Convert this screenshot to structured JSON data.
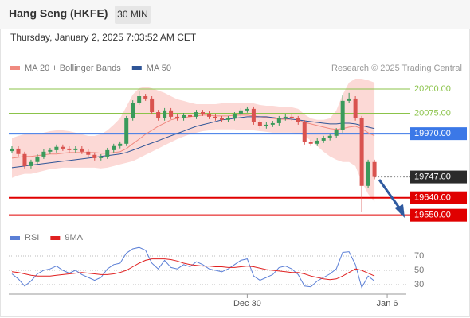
{
  "header": {
    "title": "Hang Seng (HKFE)",
    "interval": "30 MIN",
    "timestamp": "Thursday, January 2, 2025 7:03:52 AM CET"
  },
  "chart_data": [
    {
      "type": "candlestick",
      "source": "Research © 2025 Trading Central",
      "up_color": "#3a9a5b",
      "down_color": "#d9534f",
      "open": [
        19880,
        19893,
        19865,
        19803,
        19824,
        19852,
        19877,
        19885,
        19902,
        19893,
        19885,
        19893,
        19877,
        19861,
        19844,
        19852,
        19885,
        19906,
        19918,
        20049,
        20130,
        20163,
        20151,
        20081,
        20049,
        20090,
        20057,
        20049,
        20065,
        20057,
        20081,
        20073,
        20057,
        20049,
        20041,
        20049,
        20069,
        20090,
        20098,
        20028,
        20008,
        20016,
        20024,
        20049,
        20057,
        20049,
        20028,
        19926,
        19918,
        19934,
        19947,
        19959,
        19987,
        20139,
        20151,
        20049,
        19701,
        19824
      ],
      "high": [
        19905,
        19905,
        19877,
        19836,
        19864,
        19889,
        19897,
        19914,
        19914,
        19905,
        19905,
        19905,
        19889,
        19873,
        19864,
        19897,
        19918,
        19930,
        20061,
        20142,
        20190,
        20175,
        20163,
        20093,
        20102,
        20102,
        20069,
        20077,
        20077,
        20093,
        20093,
        20085,
        20069,
        20061,
        20061,
        20081,
        20102,
        20110,
        20110,
        20040,
        20028,
        20036,
        20061,
        20069,
        20069,
        20061,
        20040,
        19938,
        19946,
        19959,
        19971,
        19999,
        20170,
        20180,
        20163,
        20061,
        19836,
        19836
      ],
      "low": [
        19868,
        19853,
        19791,
        19791,
        19812,
        19840,
        19865,
        19873,
        19881,
        19873,
        19873,
        19865,
        19849,
        19832,
        19832,
        19840,
        19873,
        19894,
        19906,
        20037,
        20118,
        20139,
        20069,
        20037,
        20037,
        20045,
        20037,
        20037,
        20045,
        20045,
        20061,
        20045,
        20037,
        20029,
        20029,
        20037,
        20057,
        20078,
        20016,
        19996,
        19996,
        20004,
        20012,
        20037,
        20037,
        20016,
        19914,
        19906,
        19906,
        19922,
        19935,
        19947,
        19975,
        20127,
        20037,
        19565,
        19689,
        19735
      ],
      "close": [
        19893,
        19865,
        19803,
        19824,
        19852,
        19877,
        19885,
        19902,
        19893,
        19885,
        19893,
        19877,
        19861,
        19844,
        19852,
        19885,
        19906,
        19918,
        20049,
        20130,
        20163,
        20151,
        20081,
        20049,
        20090,
        20057,
        20049,
        20065,
        20057,
        20081,
        20073,
        20057,
        20049,
        20041,
        20049,
        20069,
        20090,
        20098,
        20028,
        20008,
        20016,
        20024,
        20049,
        20057,
        20049,
        20028,
        19926,
        19918,
        19934,
        19947,
        19959,
        19987,
        20139,
        20151,
        20049,
        19701,
        19824,
        19747
      ],
      "series": [
        {
          "name": "MA 20 + Bollinger Bands",
          "color": "#f08a80",
          "values": [
            19844,
            19848,
            19853,
            19853,
            19857,
            19861,
            19865,
            19865,
            19869,
            19873,
            19873,
            19873,
            19873,
            19873,
            19869,
            19869,
            19873,
            19877,
            19893,
            19918,
            19942,
            19967,
            19987,
            20008,
            20024,
            20041,
            20049,
            20053,
            20057,
            20061,
            20065,
            20065,
            20061,
            20061,
            20061,
            20065,
            20065,
            20065,
            20061,
            20057,
            20053,
            20049,
            20044,
            20044,
            20044,
            20041,
            20028,
            20020,
            20012,
            20004,
            19996,
            19992,
            19996,
            20004,
            20008,
            19996,
            19975,
            19959
          ]
        },
        {
          "name": "MA 50",
          "color": "#2f5597",
          "values": [
            19795,
            19799,
            19803,
            19808,
            19812,
            19816,
            19820,
            19824,
            19828,
            19832,
            19836,
            19840,
            19844,
            19848,
            19853,
            19857,
            19861,
            19865,
            19873,
            19885,
            19897,
            19910,
            19922,
            19934,
            19947,
            19959,
            19971,
            19983,
            19996,
            20008,
            20016,
            20024,
            20032,
            20041,
            20044,
            20049,
            20053,
            20057,
            20057,
            20057,
            20057,
            20053,
            20049,
            20049,
            20044,
            20041,
            20036,
            20032,
            20028,
            20024,
            20020,
            20020,
            20024,
            20024,
            20020,
            20012,
            20004,
            19996
          ]
        }
      ],
      "band_color": "#fcd9d6",
      "band_upper": [
        19947,
        19959,
        19967,
        19967,
        19967,
        19975,
        19983,
        19987,
        19987,
        19983,
        19975,
        19967,
        19959,
        19959,
        19967,
        19987,
        20016,
        20049,
        20110,
        20171,
        20204,
        20212,
        20204,
        20192,
        20180,
        20163,
        20147,
        20139,
        20130,
        20122,
        20122,
        20122,
        20122,
        20126,
        20130,
        20130,
        20130,
        20130,
        20126,
        20118,
        20114,
        20114,
        20110,
        20110,
        20106,
        20098,
        20069,
        20049,
        20041,
        20041,
        20049,
        20090,
        20171,
        20233,
        20253,
        20253,
        20245,
        20233
      ],
      "band_lower": [
        19742,
        19755,
        19763,
        19763,
        19771,
        19779,
        19787,
        19791,
        19795,
        19795,
        19795,
        19795,
        19795,
        19795,
        19791,
        19795,
        19803,
        19812,
        19820,
        19828,
        19844,
        19861,
        19877,
        19893,
        19910,
        19926,
        19942,
        19955,
        19967,
        19975,
        19983,
        19987,
        19992,
        19992,
        19992,
        19992,
        19987,
        19987,
        19987,
        19983,
        19979,
        19975,
        19975,
        19975,
        19975,
        19971,
        19959,
        19934,
        19906,
        19877,
        19853,
        19836,
        19824,
        19824,
        19803,
        19722,
        19660,
        19619
      ],
      "levels": [
        {
          "value": 20200,
          "label": "20200.00",
          "color": "#8bc34a",
          "boxed": false
        },
        {
          "value": 20075,
          "label": "20075.00",
          "color": "#8bc34a",
          "boxed": false
        },
        {
          "value": 19970,
          "label": "19970.00",
          "color": "#3b78e7",
          "boxed": true
        },
        {
          "value": 19747,
          "label": "19747.00",
          "color": "#2b2b2b",
          "boxed": true,
          "dotted": true
        },
        {
          "value": 19640,
          "label": "19640.00",
          "color": "#e00000",
          "boxed": true
        },
        {
          "value": 19550,
          "label": "19550.00",
          "color": "#e00000",
          "boxed": true
        }
      ],
      "xlim": [
        -0.5,
        62
      ],
      "ylim": [
        19520,
        20290
      ],
      "xticks": [
        {
          "value": 37,
          "label": "Dec 30"
        },
        {
          "value": 59,
          "label": "Jan 6"
        }
      ]
    },
    {
      "type": "line",
      "series": [
        {
          "name": "RSI",
          "color": "#5b7fd6",
          "values": [
            45,
            38,
            28,
            35,
            45,
            50,
            52,
            56,
            50,
            46,
            50,
            44,
            40,
            36,
            40,
            52,
            58,
            60,
            74,
            80,
            82,
            78,
            60,
            52,
            64,
            54,
            52,
            58,
            55,
            62,
            58,
            52,
            50,
            48,
            52,
            58,
            64,
            66,
            42,
            36,
            40,
            44,
            54,
            56,
            52,
            44,
            28,
            27,
            35,
            40,
            45,
            52,
            75,
            76,
            58,
            26,
            42,
            35
          ]
        },
        {
          "name": "9MA",
          "color": "#e02020",
          "values": [
            48,
            47,
            45,
            43,
            42,
            42,
            42,
            43,
            44,
            45,
            46,
            47,
            46,
            45,
            44,
            44,
            45,
            47,
            50,
            55,
            60,
            64,
            66,
            66,
            66,
            65,
            63,
            60,
            58,
            57,
            56,
            56,
            55,
            55,
            54,
            54,
            55,
            56,
            55,
            53,
            51,
            50,
            49,
            48,
            47,
            47,
            45,
            42,
            40,
            38,
            37,
            38,
            42,
            47,
            52,
            50,
            46,
            42
          ]
        }
      ],
      "xlim": [
        -0.5,
        62
      ],
      "ylim": [
        17,
        81
      ],
      "yticks": [
        70,
        50,
        30
      ]
    }
  ]
}
